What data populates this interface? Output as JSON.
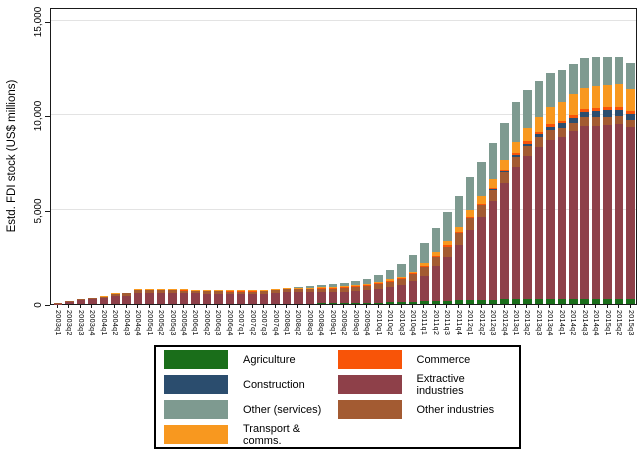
{
  "figure": {
    "y_axis_title": "Estd. FDI stock (US$ millions)",
    "y_ticks": [
      {
        "value": 0,
        "label": "0"
      },
      {
        "value": 5000,
        "label": "5,000"
      },
      {
        "value": 10000,
        "label": "10,000"
      },
      {
        "value": 15000,
        "label": "15,000"
      }
    ]
  },
  "chart_data": {
    "type": "bar",
    "stacked": true,
    "title": "",
    "xlabel": "",
    "ylabel": "Estd. FDI stock (US$ millions)",
    "ylim": [
      0,
      15700
    ],
    "yticks": [
      0,
      5000,
      10000,
      15000
    ],
    "grid": "horizontal",
    "legend_position": "bottom",
    "categories": [
      "2003q1",
      "2003q2",
      "2003q3",
      "2003q4",
      "2004q1",
      "2004q2",
      "2004q3",
      "2004q4",
      "2005q1",
      "2005q2",
      "2005q3",
      "2005q4",
      "2006q1",
      "2006q2",
      "2006q3",
      "2006q4",
      "2007q1",
      "2007q2",
      "2007q3",
      "2007q4",
      "2008q1",
      "2008q2",
      "2008q3",
      "2008q4",
      "2009q1",
      "2009q2",
      "2009q3",
      "2009q4",
      "2010q1",
      "2010q2",
      "2010q3",
      "2010q4",
      "2011q1",
      "2011q2",
      "2011q3",
      "2011q4",
      "2012q1",
      "2012q2",
      "2012q3",
      "2012q4",
      "2013q1",
      "2013q2",
      "2013q3",
      "2013q4",
      "2014q1",
      "2014q2",
      "2014q3",
      "2014q4",
      "2015q1",
      "2015q2",
      "2015q3"
    ],
    "series": [
      {
        "name": "Agriculture",
        "color": "#1a6e1a",
        "values": [
          0,
          0,
          0,
          0,
          0,
          0,
          0,
          0,
          0,
          0,
          0,
          0,
          0,
          0,
          0,
          0,
          0,
          0,
          0,
          0,
          0,
          0,
          0,
          30,
          40,
          50,
          60,
          70,
          80,
          90,
          100,
          120,
          140,
          160,
          180,
          200,
          210,
          220,
          230,
          240,
          250,
          250,
          250,
          250,
          250,
          250,
          260,
          260,
          260,
          260,
          260
        ]
      },
      {
        "name": "Extractive industries",
        "color": "#8e4049",
        "values": [
          20,
          120,
          210,
          270,
          300,
          430,
          450,
          600,
          600,
          600,
          590,
          570,
          560,
          550,
          540,
          530,
          520,
          530,
          550,
          590,
          630,
          620,
          630,
          620,
          600,
          600,
          640,
          680,
          720,
          810,
          910,
          1080,
          1350,
          1830,
          2310,
          2940,
          3690,
          4400,
          5230,
          6160,
          7010,
          7600,
          8080,
          8450,
          8610,
          8880,
          9150,
          9170,
          9220,
          9260,
          9080
        ]
      },
      {
        "name": "Other industries",
        "color": "#a35b32",
        "values": [
          10,
          30,
          50,
          70,
          80,
          100,
          110,
          130,
          140,
          140,
          140,
          140,
          130,
          130,
          130,
          130,
          130,
          130,
          130,
          130,
          140,
          150,
          160,
          170,
          180,
          190,
          200,
          220,
          250,
          280,
          320,
          380,
          450,
          500,
          550,
          600,
          630,
          600,
          580,
          560,
          540,
          520,
          500,
          490,
          480,
          470,
          460,
          450,
          440,
          430,
          420
        ]
      },
      {
        "name": "Construction",
        "color": "#2b4d6e",
        "values": [
          0,
          0,
          0,
          0,
          0,
          0,
          0,
          0,
          0,
          0,
          0,
          0,
          0,
          0,
          0,
          0,
          0,
          0,
          0,
          0,
          0,
          0,
          0,
          0,
          0,
          0,
          0,
          0,
          0,
          0,
          0,
          0,
          0,
          0,
          0,
          0,
          0,
          0,
          50,
          80,
          100,
          120,
          150,
          180,
          220,
          250,
          280,
          320,
          330,
          330,
          320
        ]
      },
      {
        "name": "Commerce",
        "color": "#f85408",
        "values": [
          0,
          0,
          0,
          0,
          0,
          0,
          0,
          20,
          20,
          20,
          20,
          20,
          20,
          20,
          20,
          20,
          30,
          30,
          30,
          30,
          30,
          30,
          30,
          30,
          40,
          40,
          40,
          40,
          40,
          40,
          40,
          40,
          60,
          60,
          60,
          60,
          60,
          60,
          60,
          60,
          100,
          110,
          120,
          130,
          140,
          150,
          150,
          150,
          150,
          150,
          140
        ]
      },
      {
        "name": "Transport & comms.",
        "color": "#f8981f",
        "values": [
          0,
          0,
          0,
          0,
          30,
          30,
          30,
          30,
          40,
          40,
          40,
          40,
          40,
          40,
          40,
          40,
          50,
          50,
          50,
          50,
          50,
          50,
          50,
          50,
          60,
          60,
          60,
          60,
          80,
          80,
          80,
          80,
          150,
          200,
          250,
          300,
          380,
          420,
          450,
          500,
          600,
          700,
          800,
          900,
          1000,
          1100,
          1150,
          1200,
          1200,
          1200,
          1150
        ]
      },
      {
        "name": "Other (services)",
        "color": "#7e9a90",
        "values": [
          0,
          0,
          0,
          0,
          0,
          0,
          0,
          0,
          0,
          0,
          0,
          0,
          0,
          0,
          0,
          0,
          0,
          0,
          0,
          0,
          0,
          50,
          80,
          100,
          130,
          160,
          200,
          280,
          380,
          500,
          650,
          900,
          1100,
          1300,
          1500,
          1600,
          1730,
          1800,
          1900,
          2000,
          2100,
          2000,
          1900,
          1800,
          1700,
          1600,
          1550,
          1500,
          1450,
          1420,
          1380
        ]
      }
    ],
    "legend_order": [
      "Agriculture",
      "Commerce",
      "Construction",
      "Extractive industries",
      "Other (services)",
      "Other industries",
      "Transport & comms."
    ]
  }
}
